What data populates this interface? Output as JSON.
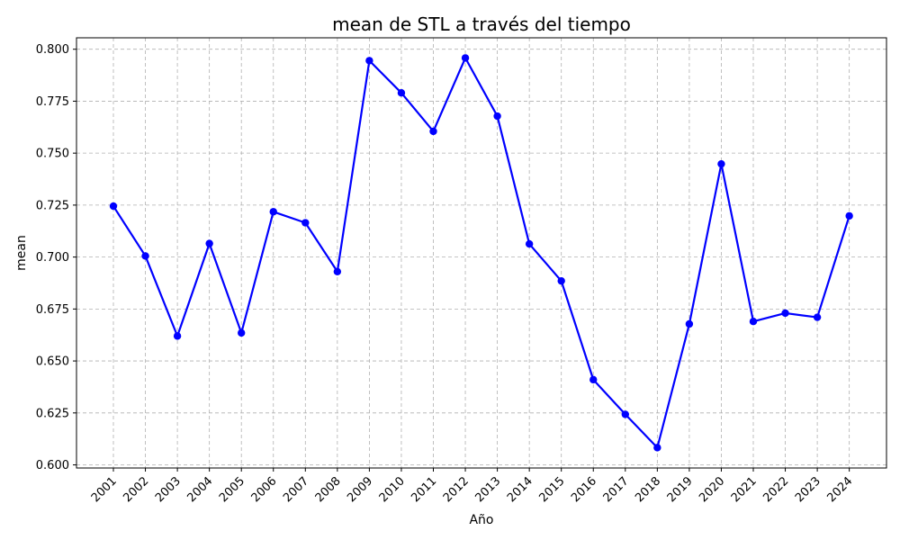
{
  "chart_data": {
    "type": "line",
    "title": "mean de STL a través del tiempo",
    "xlabel": "Año",
    "ylabel": "mean",
    "categories": [
      "2001",
      "2002",
      "2003",
      "2004",
      "2005",
      "2006",
      "2007",
      "2008",
      "2009",
      "2010",
      "2011",
      "2012",
      "2013",
      "2014",
      "2015",
      "2016",
      "2017",
      "2018",
      "2019",
      "2020",
      "2021",
      "2022",
      "2023",
      "2024"
    ],
    "series": [
      {
        "values": [
          0.7245,
          0.7005,
          0.662,
          0.7065,
          0.6635,
          0.7218,
          0.7165,
          0.693,
          0.7945,
          0.779,
          0.7605,
          0.7958,
          0.7678,
          0.7063,
          0.6885,
          0.641,
          0.6243,
          0.6083,
          0.6678,
          0.7448,
          0.669,
          0.673,
          0.671,
          0.7198
        ],
        "color": "#0000ff"
      }
    ],
    "ylim": [
      0.5985,
      0.8055
    ],
    "yticks": [
      "0.600",
      "0.625",
      "0.650",
      "0.675",
      "0.700",
      "0.725",
      "0.750",
      "0.775",
      "0.800"
    ],
    "grid": true,
    "legend": "none"
  }
}
